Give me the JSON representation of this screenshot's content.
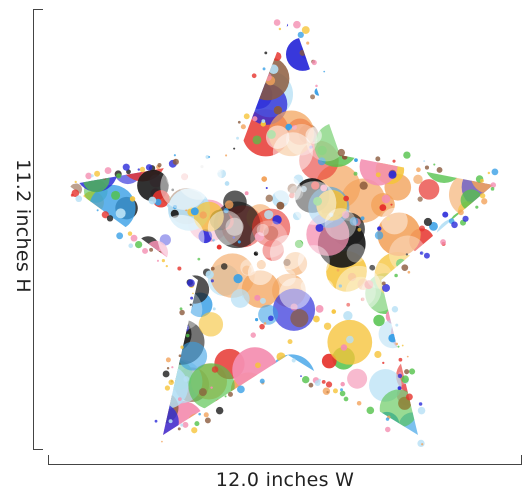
{
  "product": {
    "width_label": "12.0 inches W",
    "height_label": "11.2 inches H",
    "artwork": {
      "subject": "star-icon",
      "palette": [
        "#e6322c",
        "#f6c43a",
        "#3aa0e6",
        "#52c24a",
        "#f48fb1",
        "#8b5a3c",
        "#2b2bd9",
        "#1a1a1a",
        "#f3a35b",
        "#b7e0f5"
      ]
    }
  }
}
